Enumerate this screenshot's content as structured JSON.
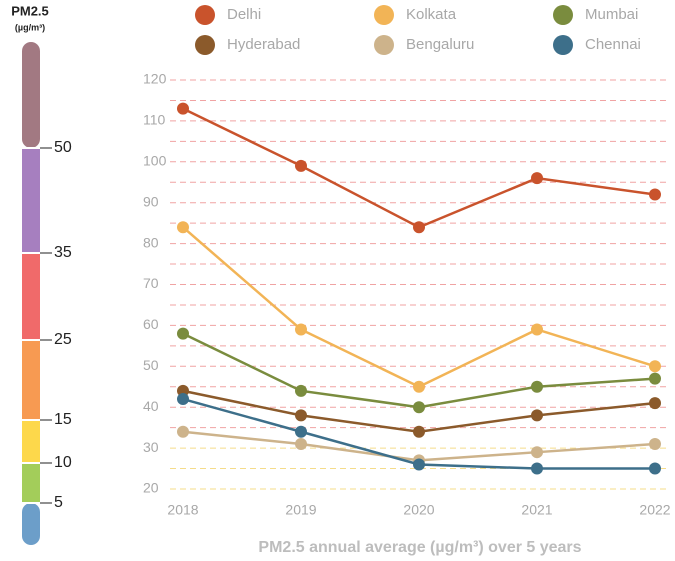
{
  "chart_data": {
    "type": "line",
    "x_title": "PM2.5 annual average (µg/m³) over 5 years",
    "categories": [
      "2018",
      "2019",
      "2020",
      "2021",
      "2022"
    ],
    "series": [
      {
        "name": "Delhi",
        "color": "#c9532c",
        "values": [
          113,
          99,
          84,
          96,
          92
        ]
      },
      {
        "name": "Kolkata",
        "color": "#f2b456",
        "values": [
          84,
          59,
          45,
          59,
          50
        ]
      },
      {
        "name": "Mumbai",
        "color": "#7a8c3e",
        "values": [
          58,
          44,
          40,
          45,
          47
        ]
      },
      {
        "name": "Hyderabad",
        "color": "#8b5a2b",
        "values": [
          44,
          38,
          34,
          38,
          41
        ]
      },
      {
        "name": "Bengaluru",
        "color": "#cdb38b",
        "values": [
          34,
          31,
          27,
          29,
          31
        ]
      },
      {
        "name": "Chennai",
        "color": "#3d6f8a",
        "values": [
          42,
          34,
          26,
          25,
          25
        ]
      }
    ],
    "ylim": [
      20,
      120
    ],
    "yticks": [
      20,
      30,
      40,
      50,
      60,
      70,
      80,
      90,
      100,
      110,
      120
    ],
    "grid_lines": [
      {
        "value": 20,
        "color": "#f5dc8a"
      },
      {
        "value": 25,
        "color": "#f5dc8a"
      },
      {
        "value": 30,
        "color": "#f5dc8a"
      },
      {
        "value": 35,
        "color": "#f0a3a3"
      },
      {
        "value": 40,
        "color": "#f0a3a3"
      },
      {
        "value": 45,
        "color": "#f0a3a3"
      },
      {
        "value": 50,
        "color": "#f0a3a3"
      },
      {
        "value": 55,
        "color": "#f0a3a3"
      },
      {
        "value": 60,
        "color": "#f0a3a3"
      },
      {
        "value": 65,
        "color": "#f0a3a3"
      },
      {
        "value": 70,
        "color": "#f0a3a3"
      },
      {
        "value": 75,
        "color": "#f0a3a3"
      },
      {
        "value": 80,
        "color": "#f0a3a3"
      },
      {
        "value": 85,
        "color": "#f0a3a3"
      },
      {
        "value": 90,
        "color": "#f0a3a3"
      },
      {
        "value": 95,
        "color": "#f0a3a3"
      },
      {
        "value": 100,
        "color": "#f0a3a3"
      },
      {
        "value": 105,
        "color": "#f0a3a3"
      },
      {
        "value": 110,
        "color": "#f0a3a3"
      },
      {
        "value": 115,
        "color": "#f0a3a3"
      },
      {
        "value": 120,
        "color": "#f0a3a3"
      }
    ],
    "scale": {
      "title": "PM2.5",
      "unit": "(µg/m³)",
      "breaks": [
        5,
        10,
        15,
        25,
        35,
        50
      ],
      "colors": [
        "#6c9ec9",
        "#a3cd5a",
        "#fdd84b",
        "#f79a52",
        "#f06a6a",
        "#a67fbf",
        "#a27982"
      ]
    }
  }
}
